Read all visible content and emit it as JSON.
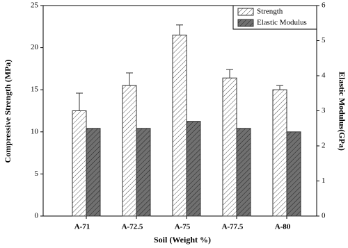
{
  "chart_data": {
    "type": "bar",
    "x_label": "Soil (Weight %)",
    "y_label": "Compressive Strength (MPa)",
    "y2_label": "Elastic Modulus(GPa)",
    "categories": [
      "A-71",
      "A-72.5",
      "A-75",
      "A-77.5",
      "A-80"
    ],
    "series": [
      {
        "name": "Strength",
        "color": "#ffffff",
        "values": [
          12.5,
          15.5,
          21.5,
          16.4,
          15.0
        ],
        "errors": [
          2.1,
          1.5,
          1.2,
          1.0,
          0.5
        ]
      },
      {
        "name": "Elastic Modulus",
        "color": "#707070",
        "axis": "y2",
        "values": [
          2.5,
          2.5,
          2.7,
          2.5,
          2.4
        ]
      }
    ],
    "ylim": [
      0,
      25
    ],
    "yticks": [
      0,
      5,
      10,
      15,
      20,
      25
    ],
    "y2lim": [
      0,
      6
    ],
    "y2ticks": [
      0,
      1,
      2,
      3,
      4,
      5,
      6
    ],
    "legend": "upper right"
  }
}
